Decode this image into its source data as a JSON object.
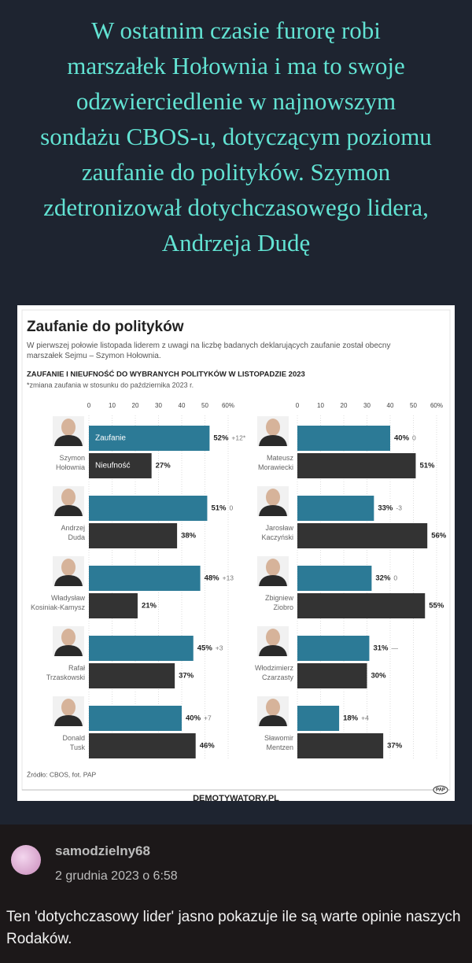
{
  "header": {
    "text": "W ostatnim czasie furorę robi marszałek Hołownia i ma to swoje odzwierciedlenie w najnowszym sondażu CBOS-u, dotyczącym poziomu zaufanie do polityków. Szymon zdetronizował dotychczasowego lidera, Andrzeja Dudę"
  },
  "chart_data": {
    "type": "bar",
    "orientation": "horizontal",
    "title": "Zaufanie do polityków",
    "subtitle": "W pierwszej połowie listopada liderem z uwagi na liczbę badanych deklarujących zaufanie został obecny marszałek Sejmu – Szymon Hołownia.",
    "heading": "ZAUFANIE I NIEUFNOŚĆ DO WYBRANYCH POLITYKÓW W LISTOPADZIE 2023",
    "note": "*zmiana zaufania w stosunku do października 2023 r.",
    "categories": [
      "Szymon Hołownia",
      "Andrzej Duda",
      "Władysław Kosiniak-Kamysz",
      "Rafał Trzaskowski",
      "Donald Tusk",
      "Mateusz Morawiecki",
      "Jarosław Kaczyński",
      "Zbigniew Ziobro",
      "Włodzimierz Czarzasty",
      "Sławomir Mentzen"
    ],
    "series": [
      {
        "name": "Zaufanie",
        "color": "#2c7a96",
        "values": [
          52,
          51,
          48,
          45,
          40,
          40,
          33,
          32,
          31,
          18
        ],
        "value_labels": [
          "52%",
          "51%",
          "48%",
          "45%",
          "40%",
          "40%",
          "33%",
          "32%",
          "31%",
          "18%"
        ],
        "change_labels": [
          "+12*",
          "0",
          "+13",
          "+3",
          "+7",
          "0",
          "-3",
          "0",
          "—",
          "+4"
        ]
      },
      {
        "name": "Nieufność",
        "color": "#333333",
        "values": [
          27,
          38,
          21,
          37,
          46,
          51,
          56,
          55,
          30,
          37
        ],
        "value_labels": [
          "27%",
          "38%",
          "21%",
          "37%",
          "46%",
          "51%",
          "56%",
          "55%",
          "30%",
          "37%"
        ]
      }
    ],
    "xlim": [
      0,
      60
    ],
    "xticks": [
      0,
      10,
      20,
      30,
      40,
      50,
      {
        "value": 60,
        "label": "60%"
      }
    ],
    "source": "Źródło: CBOS, fot. PAP"
  },
  "footer": {
    "site": "DEMOTYWATORY.PL",
    "logo": "PAP"
  },
  "comment": {
    "user": "samodzielny68",
    "date": "2 grudnia 2023 o 6:58",
    "text": "Ten 'dotychczasowy lider' jasno pokazuje ile są warte opinie naszych Rodaków."
  }
}
